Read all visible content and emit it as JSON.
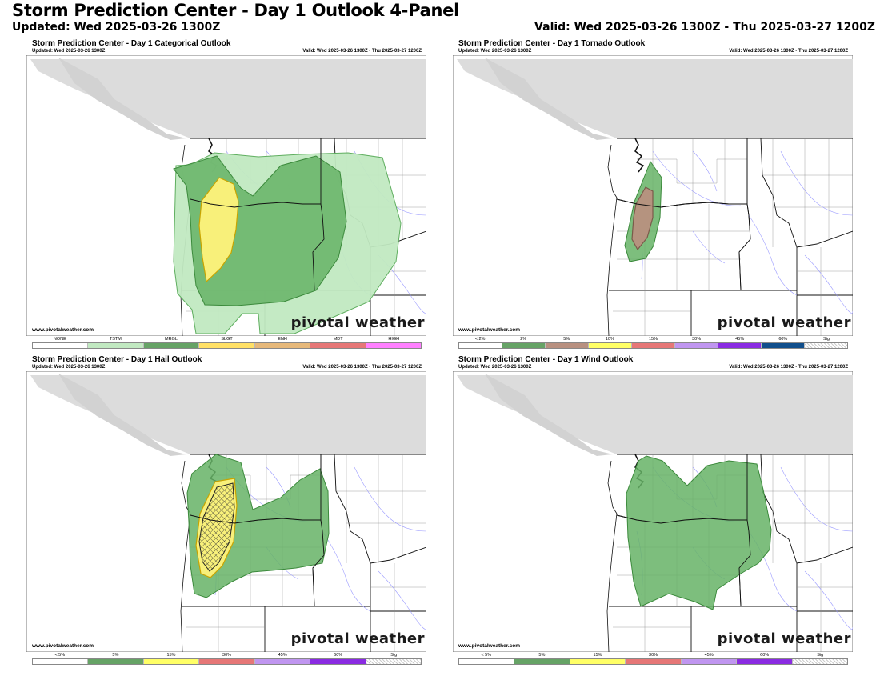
{
  "header": {
    "title": "Storm Prediction Center - Day 1 Outlook 4-Panel",
    "updated": "Updated: Wed 2025-03-26 1300Z",
    "valid": "Valid: Wed 2025-03-26 1300Z - Thu 2025-03-27 1200Z"
  },
  "panels": {
    "categorical": {
      "title": "Storm Prediction Center - Day 1 Categorical Outlook",
      "updated": "Updated: Wed 2025-03-26 1300Z",
      "valid": "Valid: Wed 2025-03-26 1300Z - Thu 2025-03-27 1200Z",
      "url": "www.pivotalweather.com",
      "brand": "pivotal weather",
      "legend": [
        {
          "label": "NONE",
          "color": "#ffffff"
        },
        {
          "label": "TSTM",
          "color": "#c1e9c1"
        },
        {
          "label": "MRGL",
          "color": "#66a366"
        },
        {
          "label": "SLGT",
          "color": "#ffe066"
        },
        {
          "label": "ENH",
          "color": "#e6b87a"
        },
        {
          "label": "MDT",
          "color": "#e67777"
        },
        {
          "label": "HIGH",
          "color": "#ff80ff"
        }
      ]
    },
    "tornado": {
      "title": "Storm Prediction Center - Day 1 Tornado Outlook",
      "updated": "Updated: Wed 2025-03-26 1300Z",
      "valid": "Valid: Wed 2025-03-26 1300Z - Thu 2025-03-27 1200Z",
      "url": "www.pivotalweather.com",
      "brand": "pivotal weather",
      "legend": [
        {
          "label": "< 2%",
          "color": "#ffffff"
        },
        {
          "label": "2%",
          "color": "#66a366"
        },
        {
          "label": "5%",
          "color": "#b89080"
        },
        {
          "label": "10%",
          "color": "#ffff66"
        },
        {
          "label": "15%",
          "color": "#e67777"
        },
        {
          "label": "30%",
          "color": "#c096f0"
        },
        {
          "label": "45%",
          "color": "#8a2be2"
        },
        {
          "label": "60%",
          "color": "#104e8b"
        },
        {
          "label": "Sig",
          "color": "#e0e0e0"
        }
      ]
    },
    "hail": {
      "title": "Storm Prediction Center - Day 1 Hail Outlook",
      "updated": "Updated: Wed 2025-03-26 1300Z",
      "valid": "Valid: Wed 2025-03-26 1300Z - Thu 2025-03-27 1200Z",
      "url": "www.pivotalweather.com",
      "brand": "pivotal weather",
      "legend": [
        {
          "label": "< 5%",
          "color": "#ffffff"
        },
        {
          "label": "5%",
          "color": "#66a366"
        },
        {
          "label": "15%",
          "color": "#ffff66"
        },
        {
          "label": "30%",
          "color": "#e67777"
        },
        {
          "label": "45%",
          "color": "#c096f0"
        },
        {
          "label": "60%",
          "color": "#8a2be2"
        },
        {
          "label": "Sig",
          "color": "#e0e0e0"
        }
      ]
    },
    "wind": {
      "title": "Storm Prediction Center - Day 1 Wind Outlook",
      "updated": "Updated: Wed 2025-03-26 1300Z",
      "valid": "Valid: Wed 2025-03-26 1300Z - Thu 2025-03-27 1200Z",
      "url": "www.pivotalweather.com",
      "brand": "pivotal weather",
      "legend": [
        {
          "label": "< 5%",
          "color": "#ffffff"
        },
        {
          "label": "5%",
          "color": "#66a366"
        },
        {
          "label": "15%",
          "color": "#ffff66"
        },
        {
          "label": "30%",
          "color": "#e67777"
        },
        {
          "label": "45%",
          "color": "#c096f0"
        },
        {
          "label": "60%",
          "color": "#8a2be2"
        },
        {
          "label": "Sig",
          "color": "#e0e0e0"
        }
      ]
    }
  }
}
